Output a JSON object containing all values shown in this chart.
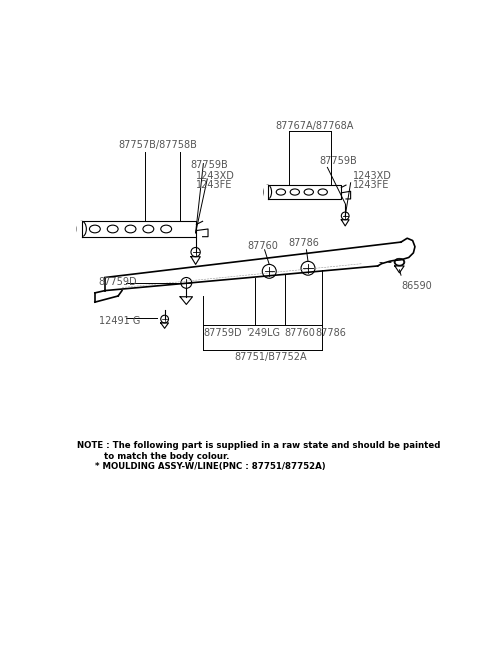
{
  "bg_color": "#ffffff",
  "fig_width": 4.8,
  "fig_height": 6.57,
  "dpi": 100,
  "note_line1": "NOTE : The following part is supplied in a raw state and should be painted",
  "note_line2": "         to match the body colour.",
  "note_line3": "      * MOULDING ASSY-W/LINE(PNC : 87751/87752A)",
  "label_color": "#555555",
  "line_color": "#000000"
}
